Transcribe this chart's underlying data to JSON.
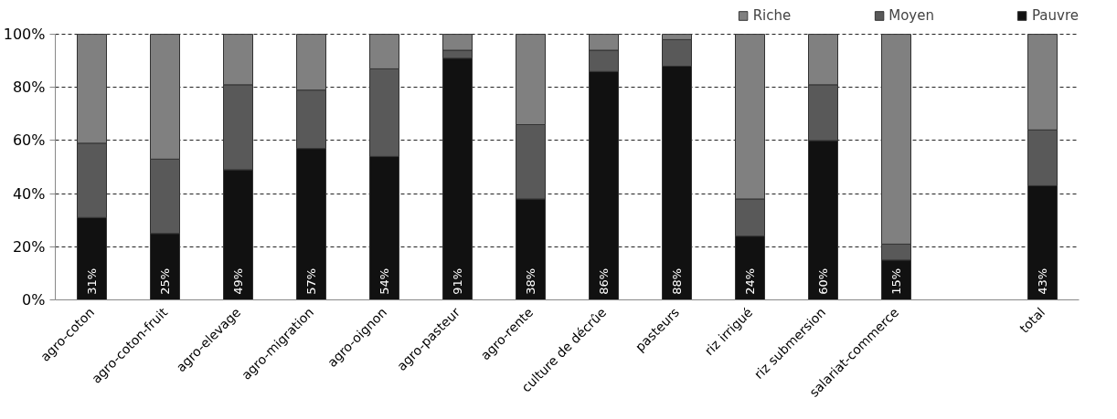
{
  "chart_data": {
    "type": "bar",
    "stacked": true,
    "categories": [
      "agro-coton",
      "agro-coton-fruit",
      "agro-elevage",
      "agro-migration",
      "agro-oignon",
      "agro-pasteur",
      "agro-rente",
      "culture de décrûe",
      "pasteurs",
      "riz irrigué",
      "riz submersion",
      "salariat-commerce",
      null,
      "total"
    ],
    "series": [
      {
        "name": "Pauvre",
        "color": "#111111",
        "values": [
          31,
          25,
          49,
          57,
          54,
          91,
          38,
          86,
          88,
          24,
          60,
          15,
          null,
          43
        ],
        "value_labels": [
          "31%",
          "25%",
          "49%",
          "57%",
          "54%",
          "91%",
          "38%",
          "86%",
          "88%",
          "24%",
          "60%",
          "15%",
          null,
          "43%"
        ]
      },
      {
        "name": "Moyen",
        "color": "#595959",
        "values": [
          28,
          28,
          32,
          22,
          33,
          3,
          28,
          8,
          10,
          14,
          21,
          6,
          null,
          21
        ]
      },
      {
        "name": "Riche",
        "color": "#808080",
        "values": [
          41,
          47,
          19,
          21,
          13,
          6,
          34,
          6,
          2,
          62,
          19,
          79,
          null,
          36
        ]
      }
    ],
    "ylim": [
      0,
      100
    ],
    "yticks": [
      {
        "value": 0,
        "label": "0%"
      },
      {
        "value": 20,
        "label": "20%"
      },
      {
        "value": 40,
        "label": "40%"
      },
      {
        "value": 60,
        "label": "60%"
      },
      {
        "value": 80,
        "label": "80%"
      },
      {
        "value": 100,
        "label": "100%"
      }
    ],
    "grid": "y",
    "legend": "top right"
  }
}
